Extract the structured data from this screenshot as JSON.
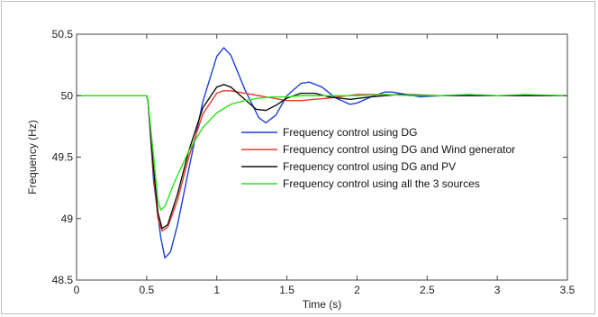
{
  "chart_data": {
    "type": "line",
    "title": "",
    "xlabel": "Time (s)",
    "ylabel": "Frequency (Hz)",
    "xlim": [
      0,
      3.5
    ],
    "ylim": [
      48.5,
      50.5
    ],
    "xticks": [
      0,
      0.5,
      1,
      1.5,
      2,
      2.5,
      3,
      3.5
    ],
    "xtick_labels": [
      "0",
      "0.5",
      "1",
      "1.5",
      "2",
      "2.5",
      "3",
      "3.5"
    ],
    "yticks": [
      48.5,
      49,
      49.5,
      50,
      50.5
    ],
    "ytick_labels": [
      "48.5",
      "49",
      "49.5",
      "50",
      "50.5"
    ],
    "grid": false,
    "legend_position": "center-right",
    "series": [
      {
        "name": "Frequency control using DG",
        "color": "#1f3fd8",
        "x": [
          0,
          0.5,
          0.51,
          0.55,
          0.6,
          0.63,
          0.67,
          0.72,
          0.8,
          0.9,
          1.0,
          1.05,
          1.1,
          1.2,
          1.3,
          1.35,
          1.42,
          1.5,
          1.6,
          1.66,
          1.75,
          1.85,
          1.95,
          2.0,
          2.1,
          2.2,
          2.25,
          2.35,
          2.45,
          2.6,
          2.8,
          3.0,
          3.2,
          3.5
        ],
        "y": [
          50.0,
          50.0,
          49.95,
          49.3,
          48.85,
          48.68,
          48.73,
          48.95,
          49.4,
          49.95,
          50.32,
          50.39,
          50.33,
          50.05,
          49.82,
          49.78,
          49.84,
          50.0,
          50.1,
          50.11,
          50.07,
          49.98,
          49.93,
          49.94,
          49.99,
          50.03,
          50.03,
          50.01,
          49.99,
          50.0,
          50.01,
          50.0,
          50.0,
          50.0
        ]
      },
      {
        "name": "Frequency control using DG and Wind generator",
        "color": "#e83a2b",
        "x": [
          0,
          0.5,
          0.51,
          0.55,
          0.58,
          0.61,
          0.65,
          0.72,
          0.8,
          0.9,
          1.0,
          1.05,
          1.1,
          1.2,
          1.3,
          1.4,
          1.5,
          1.6,
          1.8,
          2.0,
          2.2,
          2.5,
          3.0,
          3.5
        ],
        "y": [
          50.0,
          50.0,
          49.95,
          49.35,
          49.0,
          48.9,
          48.93,
          49.15,
          49.5,
          49.85,
          50.02,
          50.04,
          50.04,
          50.02,
          50.0,
          49.98,
          49.96,
          49.96,
          49.98,
          50.01,
          50.01,
          50.0,
          50.0,
          50.0
        ]
      },
      {
        "name": "Frequency control using DG and PV",
        "color": "#111111",
        "x": [
          0,
          0.5,
          0.51,
          0.55,
          0.58,
          0.61,
          0.65,
          0.72,
          0.8,
          0.9,
          1.0,
          1.05,
          1.1,
          1.2,
          1.28,
          1.35,
          1.42,
          1.5,
          1.6,
          1.7,
          1.8,
          1.95,
          2.1,
          2.3,
          2.6,
          3.0,
          3.5
        ],
        "y": [
          50.0,
          50.0,
          49.95,
          49.4,
          49.05,
          48.92,
          48.95,
          49.2,
          49.55,
          49.9,
          50.07,
          50.09,
          50.07,
          49.97,
          49.89,
          49.88,
          49.92,
          49.98,
          50.02,
          50.02,
          49.99,
          49.97,
          49.99,
          50.01,
          50.0,
          50.0,
          50.0
        ]
      },
      {
        "name": "Frequency control using all the 3 sources",
        "color": "#2ee21f",
        "x": [
          0,
          0.5,
          0.51,
          0.55,
          0.58,
          0.6,
          0.63,
          0.7,
          0.8,
          0.9,
          1.0,
          1.1,
          1.2,
          1.3,
          1.4,
          1.5,
          1.6,
          1.8,
          2.0,
          2.2,
          2.4,
          2.6,
          2.8,
          3.0,
          3.2,
          3.5
        ],
        "y": [
          50.0,
          50.0,
          49.95,
          49.5,
          49.15,
          49.07,
          49.1,
          49.3,
          49.55,
          49.74,
          49.86,
          49.93,
          49.96,
          49.98,
          49.99,
          49.99,
          50.0,
          50.0,
          50.0,
          50.01,
          50.0,
          50.0,
          50.01,
          50.0,
          50.01,
          50.0
        ]
      }
    ]
  }
}
